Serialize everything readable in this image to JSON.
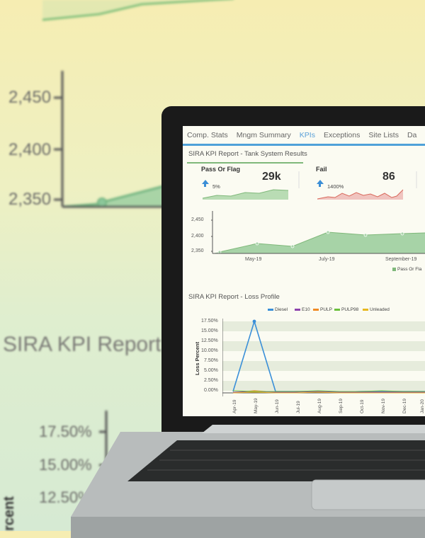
{
  "background": {
    "y_ticks_top": [
      "2,450",
      "2,400",
      "2,350"
    ],
    "title": "SIRA KPI Report",
    "y_ticks_bottom": [
      "17.50%",
      "15.00%",
      "12.50%"
    ],
    "axis_label_partial": "rcent"
  },
  "screen": {
    "tabs": [
      {
        "label": "Comp. Stats",
        "active": false
      },
      {
        "label": "Mngm Summary",
        "active": false
      },
      {
        "label": "KPIs",
        "active": true
      },
      {
        "label": "Exceptions",
        "active": false
      },
      {
        "label": "Site Lists",
        "active": false
      },
      {
        "label": "Da",
        "active": false
      }
    ],
    "tank_section": {
      "title": "SIRA KPI Report - Tank System Results",
      "cards": [
        {
          "title": "Pass Or Flag",
          "value": "29k",
          "change": "5%"
        },
        {
          "title": "Fail",
          "value": "86",
          "change": "1400%"
        }
      ],
      "y_ticks": [
        "2,450",
        "2,400",
        "2,350"
      ],
      "x_ticks": [
        "May-19",
        "July-19",
        "September-19"
      ],
      "legend": "Pass Or Fla"
    },
    "loss_section": {
      "title": "SIRA KPI Report - Loss Profile",
      "legend": [
        {
          "name": "Diesel",
          "color": "#3a8fd8"
        },
        {
          "name": "E10",
          "color": "#8e44ad"
        },
        {
          "name": "PULP",
          "color": "#f08a24"
        },
        {
          "name": "PULP98",
          "color": "#6cbf3c"
        },
        {
          "name": "Unleaded",
          "color": "#e8b820"
        }
      ],
      "y_label": "Loss Percent",
      "y_ticks": [
        "17.50%",
        "15.00%",
        "12.50%",
        "10.00%",
        "7.50%",
        "5.00%",
        "2.50%",
        "0.00%"
      ],
      "x_ticks": [
        "Apr-19",
        "May-19",
        "Jun-19",
        "Jul-19",
        "Aug-19",
        "Sep-19",
        "Oct-19",
        "Nov-19",
        "Dec-19",
        "Jan-20"
      ]
    }
  }
}
